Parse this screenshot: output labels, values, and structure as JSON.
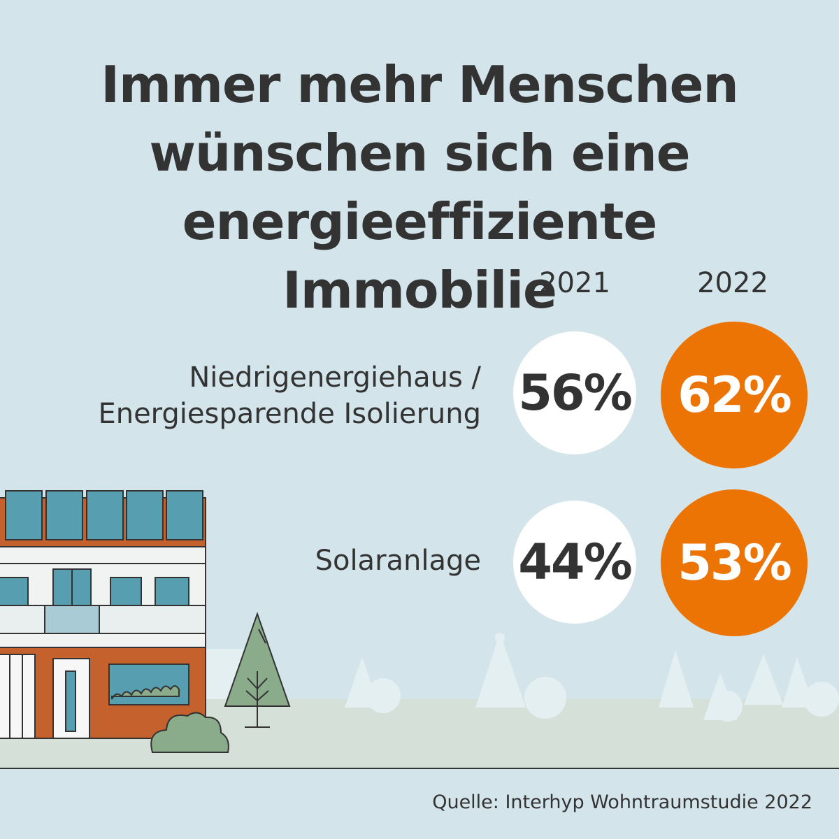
{
  "title": {
    "lines": [
      "Immer mehr Menschen",
      "wünschen sich eine",
      "energieeffiziente Immobilie"
    ]
  },
  "chart_data": {
    "type": "table",
    "title": "Immer mehr Menschen wünschen sich eine energieeffiziente Immobilie",
    "columns": [
      "2021",
      "2022"
    ],
    "rows": [
      {
        "label_lines": [
          "Niedrigenergiehaus /",
          "Energiesparende Isolierung"
        ],
        "values": [
          56,
          62
        ],
        "value_labels": [
          "56%",
          "62%"
        ]
      },
      {
        "label_lines": [
          "Solaranlage"
        ],
        "values": [
          44,
          53
        ],
        "value_labels": [
          "44%",
          "53%"
        ]
      }
    ],
    "unit": "%"
  },
  "colors": {
    "background": "#d3e5ea",
    "accent_2022": "#ec7404",
    "circle_2021": "#ffffff",
    "text": "#333333"
  },
  "source": "Quelle: Interhyp Wohntraumstudie 2022"
}
